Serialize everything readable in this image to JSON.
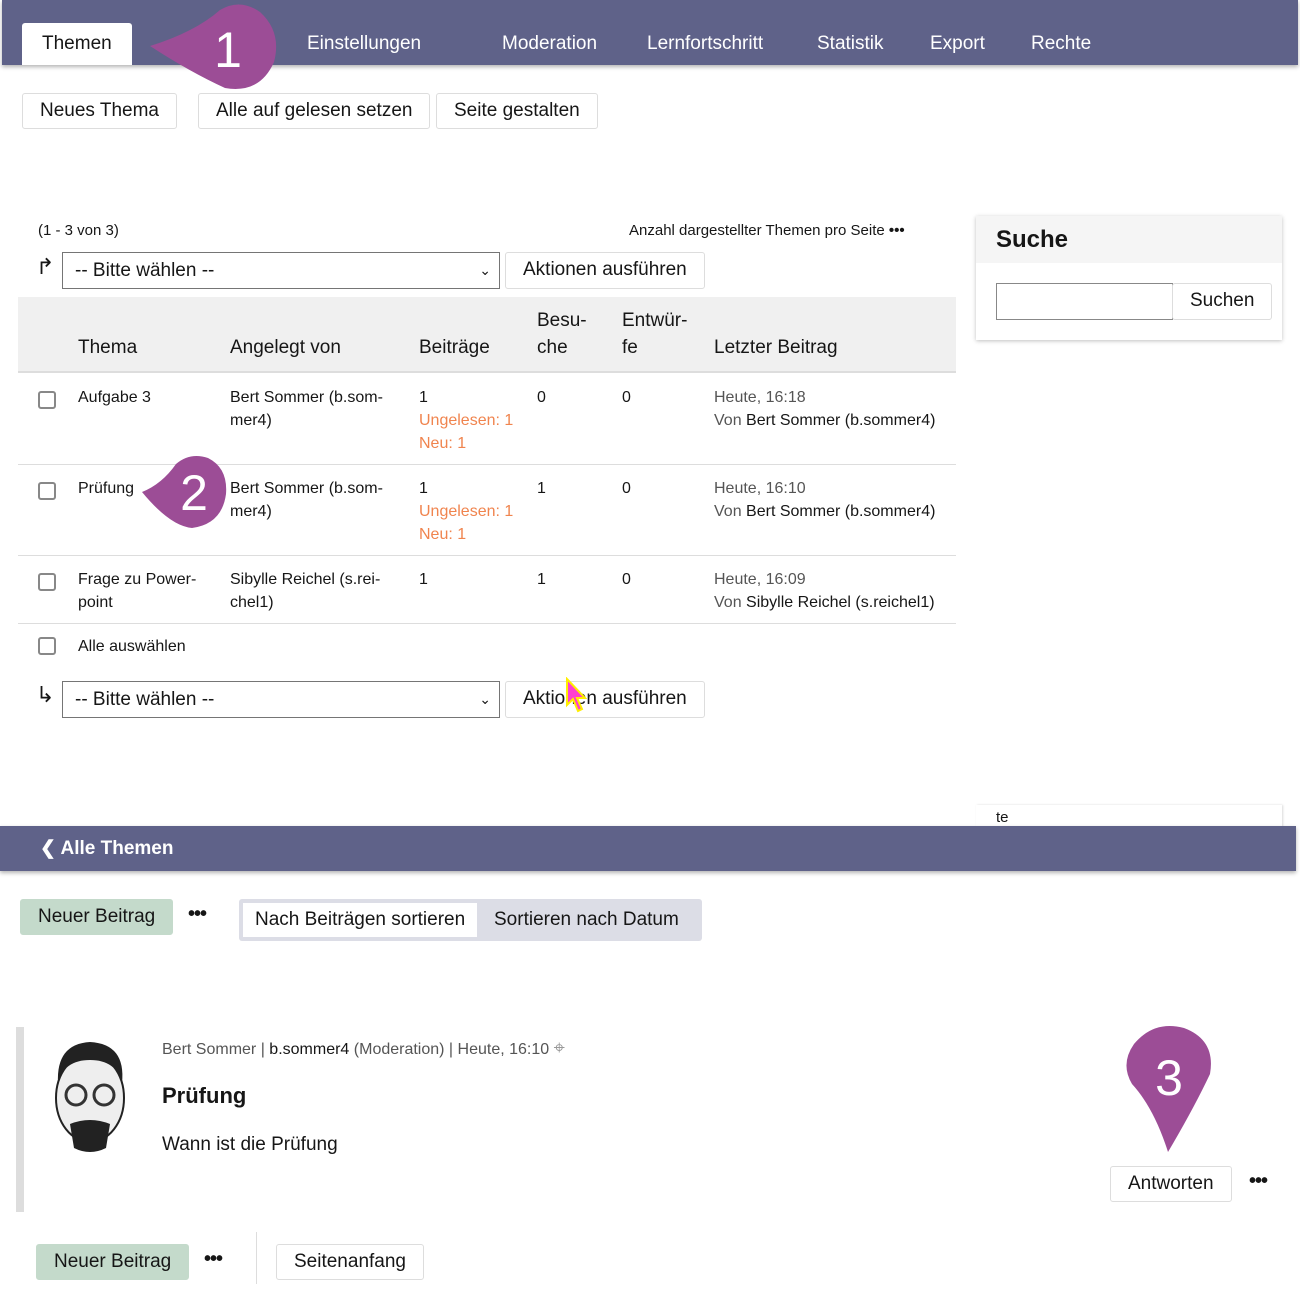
{
  "tabs": [
    {
      "label": "Themen",
      "active": true
    },
    {
      "label": "Einstellungen"
    },
    {
      "label": "Moderation"
    },
    {
      "label": "Lernfortschritt"
    },
    {
      "label": "Statistik"
    },
    {
      "label": "Export"
    },
    {
      "label": "Rechte"
    }
  ],
  "toolbar": {
    "new_topic": "Neues Thema",
    "mark_read": "Alle auf gelesen setzen",
    "design_page": "Seite gestalten"
  },
  "list": {
    "range": "(1 - 3 von 3)",
    "per_page_label": "Anzahl dargestellter Themen pro Seite",
    "select_placeholder": "-- Bitte wählen --",
    "run_actions": "Aktionen ausführen",
    "select_all": "Alle auswählen",
    "headers": {
      "topic": "Thema",
      "created_by": "Angelegt von",
      "posts": "Beiträge",
      "visits": "Besu-\nche",
      "drafts": "Entwür-\nfe",
      "last_post": "Letzter Beitrag"
    },
    "rows": [
      {
        "topic": "Aufgabe 3",
        "created_by": "Bert Sommer (b.som-\nmer4)",
        "posts": "1",
        "unread": "Ungelesen: 1",
        "new": "Neu: 1",
        "visits": "0",
        "drafts": "0",
        "last_time": "Heute, 16:18",
        "last_from_label": "Von",
        "last_from": "Bert Sommer (b.sommer4)"
      },
      {
        "topic": "Prüfung",
        "created_by": "Bert Sommer (b.som-\nmer4)",
        "posts": "1",
        "unread": "Ungelesen: 1",
        "new": "Neu: 1",
        "visits": "1",
        "drafts": "0",
        "last_time": "Heute, 16:10",
        "last_from_label": "Von",
        "last_from": "Bert Sommer (b.sommer4)"
      },
      {
        "topic": "Frage zu Power-\npoint",
        "created_by": "Sibylle Reichel (s.rei-\nchel1)",
        "posts": "1",
        "unread": "",
        "new": "",
        "visits": "1",
        "drafts": "0",
        "last_time": "Heute, 16:09",
        "last_from_label": "Von",
        "last_from": "Sibylle Reichel (s.reichel1)"
      }
    ]
  },
  "search": {
    "title": "Suche",
    "value": "",
    "button": "Suchen",
    "fragment": "te"
  },
  "thread": {
    "back": "Alle Themen",
    "new_post": "Neuer Beitrag",
    "sort_by_posts": "Nach Beiträgen sortieren",
    "sort_by_date": "Sortieren nach Datum",
    "top": "Seitenanfang"
  },
  "post": {
    "author": "Bert Sommer",
    "login": "b.sommer4",
    "role": "(Moderation)",
    "time": "Heute, 16:10",
    "title": "Prüfung",
    "body": "Wann ist die Prüfung",
    "reply": "Antworten"
  },
  "markers": [
    "1",
    "2",
    "3"
  ],
  "colors": {
    "header": "#5f6289",
    "marker": "#9c4d96",
    "unread": "#f0844e",
    "primary_button": "#c4dacb"
  }
}
